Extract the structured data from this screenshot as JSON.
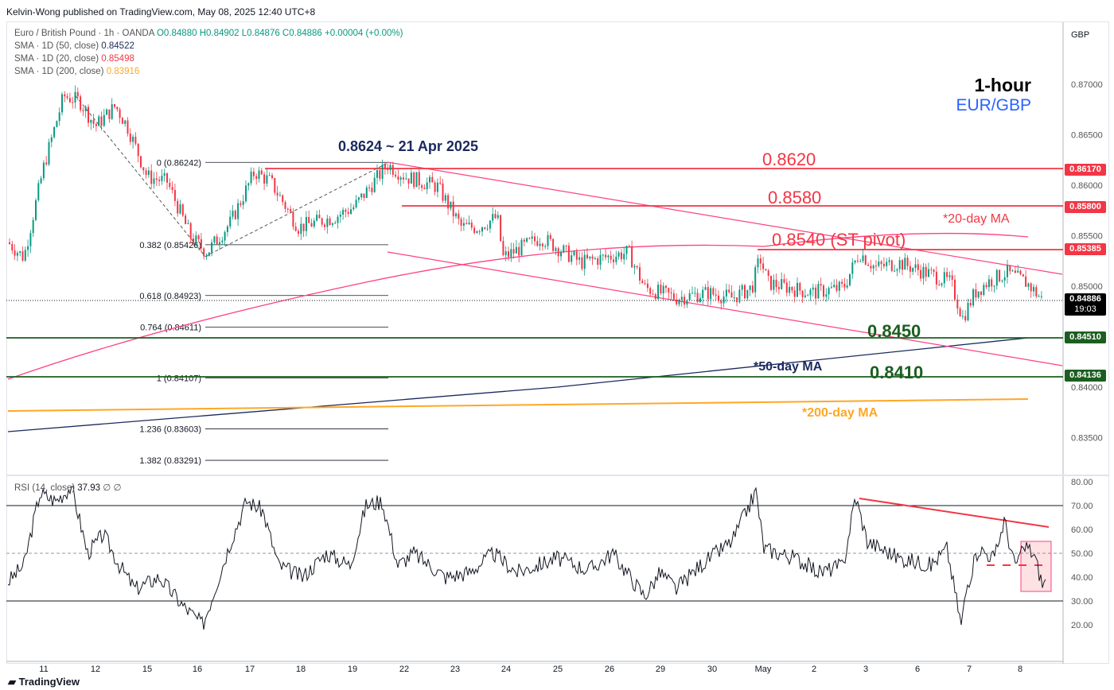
{
  "publisher": "Kelvin-Wong published on TradingView.com, May 08, 2025 12:40 UTC+8",
  "legend": {
    "symbol": "Euro / British Pound · 1h · OANDA",
    "ohlc": "O0.84880  H0.84902  L0.84876  C0.84886  +0.00004 (+0.00%)",
    "sma50_label": "SMA · 1D (50, close)",
    "sma50_value": "0.84522",
    "sma20_label": "SMA · 1D (20, close)",
    "sma20_value": "0.85498",
    "sma200_label": "SMA · 1D (200, close)",
    "sma200_value": "0.83916",
    "rsi_label": "RSI (14, close)",
    "rsi_value": "37.93",
    "rsi_extra": "∅ ∅"
  },
  "currency": "GBP",
  "title": {
    "timeframe": "1-hour",
    "pair": "EUR/GBP"
  },
  "price_axis": [
    "0.87000",
    "0.86500",
    "0.86000",
    "0.85500",
    "0.85000",
    "0.84000",
    "0.83500"
  ],
  "price_tags": [
    {
      "value": "0.86170",
      "color": "#f23645"
    },
    {
      "value": "0.85800",
      "color": "#f23645"
    },
    {
      "value": "0.85385",
      "color": "#f23645"
    },
    {
      "value": "0.84886",
      "sub": "19:03",
      "color": "#000000"
    },
    {
      "value": "0.84510",
      "color": "#1b5e20"
    },
    {
      "value": "0.84136",
      "color": "#1b5e20"
    }
  ],
  "rsi_axis": [
    "80.00",
    "70.00",
    "60.00",
    "50.00",
    "40.00",
    "30.00",
    "20.00"
  ],
  "x_axis": [
    "11",
    "12",
    "15",
    "16",
    "17",
    "18",
    "19",
    "22",
    "23",
    "24",
    "25",
    "26",
    "29",
    "30",
    "May",
    "2",
    "3",
    "6",
    "7",
    "8"
  ],
  "fib": [
    {
      "label": "0 (0.86242)",
      "price": 0.86242
    },
    {
      "label": "0.382 (0.85426)",
      "price": 0.85426
    },
    {
      "label": "0.618 (0.84923)",
      "price": 0.84923
    },
    {
      "label": "0.764 (0.84611)",
      "price": 0.84611
    },
    {
      "label": "1 (0.84107)",
      "price": 0.84107
    },
    {
      "label": "1.236 (0.83603)",
      "price": 0.83603
    },
    {
      "label": "1.382 (0.83291)",
      "price": 0.83291
    }
  ],
  "annotations": {
    "high": "0.8624 ~ 21 Apr 2025",
    "r1": "0.8620",
    "r2": "0.8580",
    "pivot": "0.8540 (ST pivot)",
    "ma20": "*20-day MA",
    "s1": "0.8450",
    "ma50": "*50-day MA",
    "s2": "0.8410",
    "ma200": "*200-day MA"
  },
  "colors": {
    "up": "#089981",
    "down": "#f23645",
    "ma20": "#ff4081",
    "ma50": "#1a2a5e",
    "ma200": "#ffa726",
    "support": "#1b5e20"
  },
  "price_path": [
    [
      10,
      0.8545
    ],
    [
      30,
      0.853
    ],
    [
      55,
      0.862
    ],
    [
      80,
      0.869
    ],
    [
      100,
      0.8685
    ],
    [
      120,
      0.866
    ],
    [
      145,
      0.868
    ],
    [
      160,
      0.866
    ],
    [
      185,
      0.861
    ],
    [
      210,
      0.8605
    ],
    [
      240,
      0.855
    ],
    [
      260,
      0.8535
    ],
    [
      290,
      0.8565
    ],
    [
      320,
      0.8615
    ],
    [
      340,
      0.8605
    ],
    [
      375,
      0.856
    ],
    [
      420,
      0.857
    ],
    [
      445,
      0.858
    ],
    [
      460,
      0.8595
    ],
    [
      487,
      0.8622
    ],
    [
      510,
      0.861
    ],
    [
      550,
      0.86
    ],
    [
      580,
      0.856
    ],
    [
      600,
      0.856
    ],
    [
      625,
      0.857
    ],
    [
      632,
      0.853
    ],
    [
      680,
      0.855
    ],
    [
      730,
      0.8525
    ],
    [
      790,
      0.8535
    ],
    [
      810,
      0.85
    ],
    [
      850,
      0.849
    ],
    [
      890,
      0.8495
    ],
    [
      920,
      0.849
    ],
    [
      945,
      0.85
    ],
    [
      955,
      0.853
    ],
    [
      965,
      0.8505
    ],
    [
      1020,
      0.8495
    ],
    [
      1060,
      0.85
    ],
    [
      1080,
      0.8535
    ],
    [
      1100,
      0.852
    ],
    [
      1130,
      0.8525
    ],
    [
      1180,
      0.851
    ],
    [
      1195,
      0.8505
    ],
    [
      1210,
      0.847
    ],
    [
      1225,
      0.8495
    ],
    [
      1240,
      0.8505
    ],
    [
      1265,
      0.8515
    ],
    [
      1290,
      0.8505
    ],
    [
      1310,
      0.8488
    ]
  ],
  "rsi_path": [
    [
      10,
      38
    ],
    [
      30,
      45
    ],
    [
      50,
      75
    ],
    [
      70,
      72
    ],
    [
      90,
      78
    ],
    [
      110,
      50
    ],
    [
      130,
      58
    ],
    [
      150,
      45
    ],
    [
      170,
      35
    ],
    [
      200,
      40
    ],
    [
      230,
      28
    ],
    [
      255,
      20
    ],
    [
      265,
      30
    ],
    [
      290,
      55
    ],
    [
      310,
      72
    ],
    [
      330,
      68
    ],
    [
      350,
      45
    ],
    [
      380,
      40
    ],
    [
      410,
      50
    ],
    [
      440,
      45
    ],
    [
      460,
      70
    ],
    [
      480,
      72
    ],
    [
      500,
      45
    ],
    [
      520,
      50
    ],
    [
      560,
      40
    ],
    [
      590,
      42
    ],
    [
      620,
      50
    ],
    [
      650,
      42
    ],
    [
      700,
      48
    ],
    [
      740,
      43
    ],
    [
      770,
      50
    ],
    [
      810,
      32
    ],
    [
      830,
      42
    ],
    [
      850,
      35
    ],
    [
      880,
      45
    ],
    [
      920,
      55
    ],
    [
      950,
      76
    ],
    [
      960,
      52
    ],
    [
      1000,
      48
    ],
    [
      1030,
      42
    ],
    [
      1060,
      45
    ],
    [
      1075,
      74
    ],
    [
      1090,
      55
    ],
    [
      1130,
      48
    ],
    [
      1170,
      45
    ],
    [
      1190,
      52
    ],
    [
      1208,
      20
    ],
    [
      1215,
      36
    ],
    [
      1230,
      52
    ],
    [
      1250,
      48
    ],
    [
      1262,
      64
    ],
    [
      1275,
      45
    ],
    [
      1290,
      53
    ],
    [
      1300,
      49
    ],
    [
      1310,
      37
    ],
    [
      1315,
      38
    ]
  ],
  "footer": "TradingView"
}
